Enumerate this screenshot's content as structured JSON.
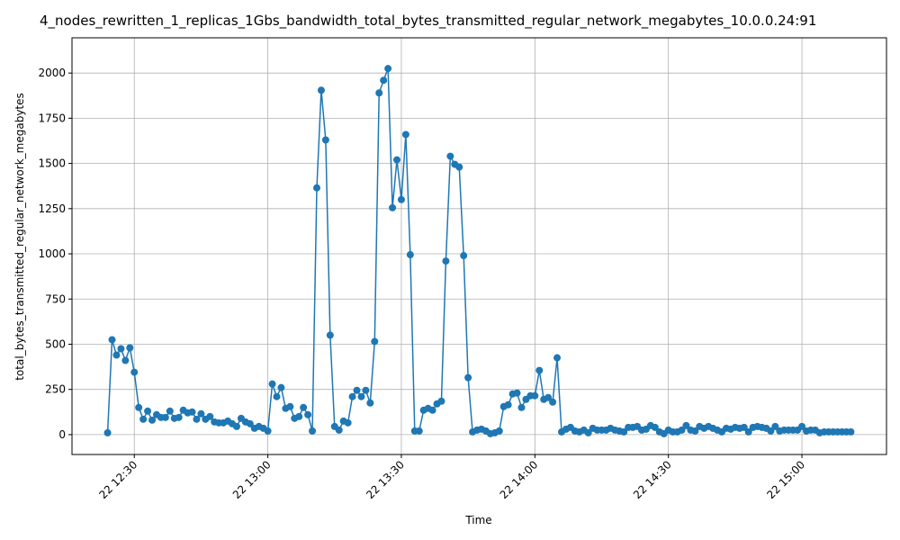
{
  "chart_data": {
    "type": "line",
    "title": "4_nodes_rewritten_1_replicas_1Gbs_bandwidth_total_bytes_transmitted_regular_network_megabytes_10.0.0.24:91",
    "x_label": "Time",
    "y_label": "total_bytes_transmitted_regular_network_megabytes",
    "color": "#1f77b4",
    "grid": true,
    "xlim": [
      "22 12:16",
      "22 15:19"
    ],
    "xticks": [
      "22 12:30",
      "22 13:00",
      "22 13:30",
      "22 14:00",
      "22 14:30",
      "22 15:00"
    ],
    "ylim": [
      -110,
      2195
    ],
    "yticks": [
      0,
      250,
      500,
      750,
      1000,
      1250,
      1500,
      1750,
      2000
    ],
    "x": [
      "22 12:24",
      "22 12:25",
      "22 12:26",
      "22 12:27",
      "22 12:28",
      "22 12:29",
      "22 12:30",
      "22 12:31",
      "22 12:32",
      "22 12:33",
      "22 12:34",
      "22 12:35",
      "22 12:36",
      "22 12:37",
      "22 12:38",
      "22 12:39",
      "22 12:40",
      "22 12:41",
      "22 12:42",
      "22 12:43",
      "22 12:44",
      "22 12:45",
      "22 12:46",
      "22 12:47",
      "22 12:48",
      "22 12:49",
      "22 12:50",
      "22 12:51",
      "22 12:52",
      "22 12:53",
      "22 12:54",
      "22 12:55",
      "22 12:56",
      "22 12:57",
      "22 12:58",
      "22 12:59",
      "22 13:00",
      "22 13:01",
      "22 13:02",
      "22 13:03",
      "22 13:04",
      "22 13:05",
      "22 13:06",
      "22 13:07",
      "22 13:08",
      "22 13:09",
      "22 13:10",
      "22 13:11",
      "22 13:12",
      "22 13:13",
      "22 13:14",
      "22 13:15",
      "22 13:16",
      "22 13:17",
      "22 13:18",
      "22 13:19",
      "22 13:20",
      "22 13:21",
      "22 13:22",
      "22 13:23",
      "22 13:24",
      "22 13:25",
      "22 13:26",
      "22 13:27",
      "22 13:28",
      "22 13:29",
      "22 13:30",
      "22 13:31",
      "22 13:32",
      "22 13:33",
      "22 13:34",
      "22 13:35",
      "22 13:36",
      "22 13:37",
      "22 13:38",
      "22 13:39",
      "22 13:40",
      "22 13:41",
      "22 13:42",
      "22 13:43",
      "22 13:44",
      "22 13:45",
      "22 13:46",
      "22 13:47",
      "22 13:48",
      "22 13:49",
      "22 13:50",
      "22 13:51",
      "22 13:52",
      "22 13:53",
      "22 13:54",
      "22 13:55",
      "22 13:56",
      "22 13:57",
      "22 13:58",
      "22 13:59",
      "22 14:00",
      "22 14:01",
      "22 14:02",
      "22 14:03",
      "22 14:04",
      "22 14:05",
      "22 14:06",
      "22 14:07",
      "22 14:08",
      "22 14:09",
      "22 14:10",
      "22 14:11",
      "22 14:12",
      "22 14:13",
      "22 14:14",
      "22 14:15",
      "22 14:16",
      "22 14:17",
      "22 14:18",
      "22 14:19",
      "22 14:20",
      "22 14:21",
      "22 14:22",
      "22 14:23",
      "22 14:24",
      "22 14:25",
      "22 14:26",
      "22 14:27",
      "22 14:28",
      "22 14:29",
      "22 14:30",
      "22 14:31",
      "22 14:32",
      "22 14:33",
      "22 14:34",
      "22 14:35",
      "22 14:36",
      "22 14:37",
      "22 14:38",
      "22 14:39",
      "22 14:40",
      "22 14:41",
      "22 14:42",
      "22 14:43",
      "22 14:44",
      "22 14:45",
      "22 14:46",
      "22 14:47",
      "22 14:48",
      "22 14:49",
      "22 14:50",
      "22 14:51",
      "22 14:52",
      "22 14:53",
      "22 14:54",
      "22 14:55",
      "22 14:56",
      "22 14:57",
      "22 14:58",
      "22 14:59",
      "22 15:00",
      "22 15:01",
      "22 15:02",
      "22 15:03",
      "22 15:04",
      "22 15:05",
      "22 15:06",
      "22 15:07",
      "22 15:08",
      "22 15:09",
      "22 15:10",
      "22 15:11"
    ],
    "values": [
      10,
      525,
      440,
      475,
      410,
      480,
      345,
      150,
      85,
      130,
      80,
      110,
      95,
      95,
      130,
      90,
      95,
      135,
      120,
      125,
      85,
      115,
      85,
      100,
      70,
      65,
      65,
      75,
      60,
      45,
      90,
      70,
      60,
      35,
      45,
      35,
      20,
      280,
      210,
      260,
      145,
      155,
      90,
      100,
      150,
      110,
      20,
      1365,
      1905,
      1630,
      550,
      45,
      25,
      75,
      65,
      210,
      245,
      210,
      245,
      175,
      515,
      1890,
      1960,
      2025,
      1255,
      1520,
      1300,
      1660,
      995,
      20,
      20,
      135,
      145,
      135,
      170,
      185,
      960,
      1540,
      1495,
      1480,
      990,
      315,
      15,
      25,
      30,
      20,
      5,
      10,
      20,
      155,
      165,
      225,
      230,
      150,
      195,
      215,
      215,
      355,
      195,
      205,
      180,
      425,
      15,
      30,
      40,
      20,
      15,
      25,
      10,
      35,
      25,
      25,
      25,
      35,
      25,
      20,
      15,
      40,
      40,
      45,
      25,
      30,
      50,
      40,
      15,
      5,
      25,
      15,
      15,
      25,
      50,
      25,
      20,
      45,
      35,
      45,
      35,
      25,
      15,
      35,
      30,
      40,
      35,
      40,
      15,
      40,
      45,
      40,
      35,
      20,
      45,
      20,
      25,
      25,
      25,
      25,
      45,
      20,
      25,
      25,
      10,
      15,
      15,
      15,
      15,
      15,
      15,
      15
    ]
  }
}
